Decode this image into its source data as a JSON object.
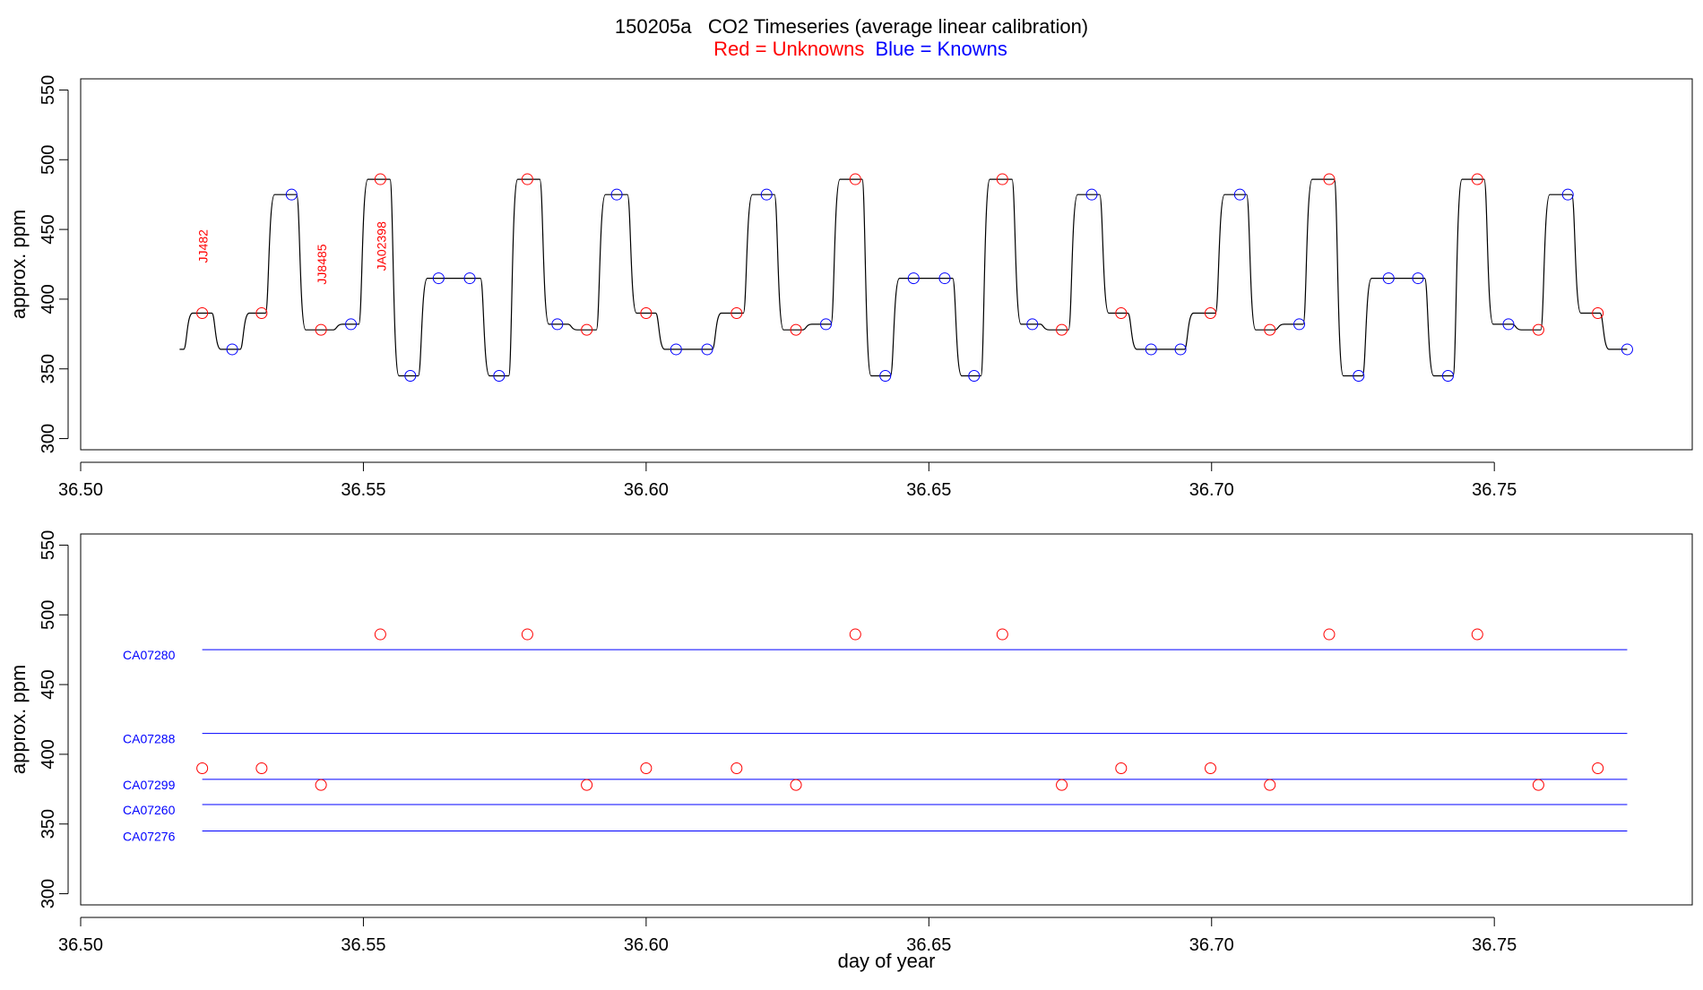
{
  "title": "150205a   CO2 Timeseries (average linear calibration)",
  "subtitle_unknowns": "Red = Unknowns",
  "subtitle_knowns": "Blue = Knowns",
  "colors": {
    "unknown": "#ff0000",
    "known": "#0000ff",
    "trace": "#000000",
    "axis": "#000000"
  },
  "chart_data": [
    {
      "type": "line",
      "name": "timeseries-panel",
      "xlabel": "",
      "ylabel": "approx. ppm",
      "xlim": [
        36.5,
        36.785
      ],
      "ylim": [
        292,
        558
      ],
      "xticks": [
        36.5,
        36.55,
        36.6,
        36.65,
        36.7,
        36.75
      ],
      "xtick_labels": [
        "36.50",
        "36.55",
        "36.60",
        "36.65",
        "36.70",
        "36.75"
      ],
      "yticks": [
        300,
        350,
        400,
        450,
        500,
        550
      ],
      "ytick_labels": [
        "300",
        "350",
        "400",
        "450",
        "500",
        "550"
      ],
      "trace_start": [
        36.5175,
        364
      ],
      "trace_levels": [
        [
          36.519,
          390
        ],
        [
          36.524,
          364
        ],
        [
          36.529,
          390
        ],
        [
          36.5335,
          475
        ],
        [
          36.539,
          378
        ],
        [
          36.5455,
          382
        ],
        [
          36.55,
          486
        ],
        [
          36.5555,
          345
        ],
        [
          36.5605,
          415
        ],
        [
          36.5715,
          345
        ],
        [
          36.5765,
          486
        ],
        [
          36.582,
          382
        ],
        [
          36.587,
          378
        ],
        [
          36.592,
          475
        ],
        [
          36.5975,
          390
        ],
        [
          36.6025,
          364
        ],
        [
          36.6125,
          390
        ],
        [
          36.618,
          475
        ],
        [
          36.6235,
          378
        ],
        [
          36.6285,
          382
        ],
        [
          36.6335,
          486
        ],
        [
          36.639,
          345
        ],
        [
          36.644,
          415
        ],
        [
          36.655,
          345
        ],
        [
          36.66,
          486
        ],
        [
          36.6655,
          382
        ],
        [
          36.6705,
          378
        ],
        [
          36.6755,
          475
        ],
        [
          36.681,
          390
        ],
        [
          36.686,
          364
        ],
        [
          36.696,
          390
        ],
        [
          36.7015,
          475
        ],
        [
          36.707,
          378
        ],
        [
          36.712,
          382
        ],
        [
          36.717,
          486
        ],
        [
          36.7225,
          345
        ],
        [
          36.7275,
          415
        ],
        [
          36.7385,
          345
        ],
        [
          36.7435,
          486
        ],
        [
          36.749,
          382
        ],
        [
          36.754,
          378
        ],
        [
          36.759,
          475
        ],
        [
          36.7645,
          390
        ],
        [
          36.7695,
          364
        ]
      ],
      "trace_end": 36.7735,
      "unknown_points": {
        "x": [
          36.5215,
          36.532,
          36.5425,
          36.553,
          36.579,
          36.5895,
          36.6,
          36.616,
          36.6265,
          36.637,
          36.663,
          36.6735,
          36.684,
          36.6998,
          36.7103,
          36.7208,
          36.747,
          36.7578,
          36.7683
        ],
        "y": [
          390,
          390,
          378,
          486,
          486,
          378,
          390,
          390,
          378,
          486,
          486,
          378,
          390,
          390,
          378,
          486,
          486,
          378,
          390
        ]
      },
      "known_points": {
        "x": [
          36.5268,
          36.5373,
          36.5478,
          36.5583,
          36.5633,
          36.5688,
          36.574,
          36.5843,
          36.5948,
          36.6053,
          36.6108,
          36.6213,
          36.6318,
          36.6423,
          36.6473,
          36.6528,
          36.658,
          36.6683,
          36.6788,
          36.6893,
          36.6945,
          36.705,
          36.7155,
          36.726,
          36.7313,
          36.7365,
          36.7418,
          36.7525,
          36.763,
          36.7735
        ],
        "y": [
          364,
          475,
          382,
          345,
          415,
          415,
          345,
          382,
          475,
          364,
          364,
          475,
          382,
          345,
          415,
          415,
          345,
          382,
          475,
          364,
          364,
          475,
          382,
          345,
          415,
          415,
          345,
          382,
          475,
          364
        ]
      },
      "annotations": [
        {
          "text": "JJ482",
          "x": 36.5215,
          "y": 438
        },
        {
          "text": "JJ8485",
          "x": 36.5425,
          "y": 425
        },
        {
          "text": "JA02398",
          "x": 36.553,
          "y": 438
        }
      ]
    },
    {
      "type": "scatter",
      "name": "calibration-panel",
      "xlabel": "day of year",
      "ylabel": "approx. ppm",
      "xlim": [
        36.5,
        36.785
      ],
      "ylim": [
        292,
        558
      ],
      "xticks": [
        36.5,
        36.55,
        36.6,
        36.65,
        36.7,
        36.75
      ],
      "xtick_labels": [
        "36.50",
        "36.55",
        "36.60",
        "36.65",
        "36.70",
        "36.75"
      ],
      "yticks": [
        300,
        350,
        400,
        450,
        500,
        550
      ],
      "ytick_labels": [
        "300",
        "350",
        "400",
        "450",
        "500",
        "550"
      ],
      "reference_lines": [
        {
          "label": "CA07280",
          "value": 475
        },
        {
          "label": "CA07288",
          "value": 415
        },
        {
          "label": "CA07299",
          "value": 382
        },
        {
          "label": "CA07260",
          "value": 364
        },
        {
          "label": "CA07276",
          "value": 345
        }
      ],
      "reference_x_range": [
        36.5215,
        36.7735
      ],
      "unknown_points": {
        "x": [
          36.5215,
          36.532,
          36.5425,
          36.553,
          36.579,
          36.5895,
          36.6,
          36.616,
          36.6265,
          36.637,
          36.663,
          36.6735,
          36.684,
          36.6998,
          36.7103,
          36.7208,
          36.747,
          36.7578,
          36.7683
        ],
        "y": [
          390,
          390,
          378,
          486,
          486,
          378,
          390,
          390,
          378,
          486,
          486,
          378,
          390,
          390,
          378,
          486,
          486,
          378,
          390
        ]
      }
    }
  ]
}
